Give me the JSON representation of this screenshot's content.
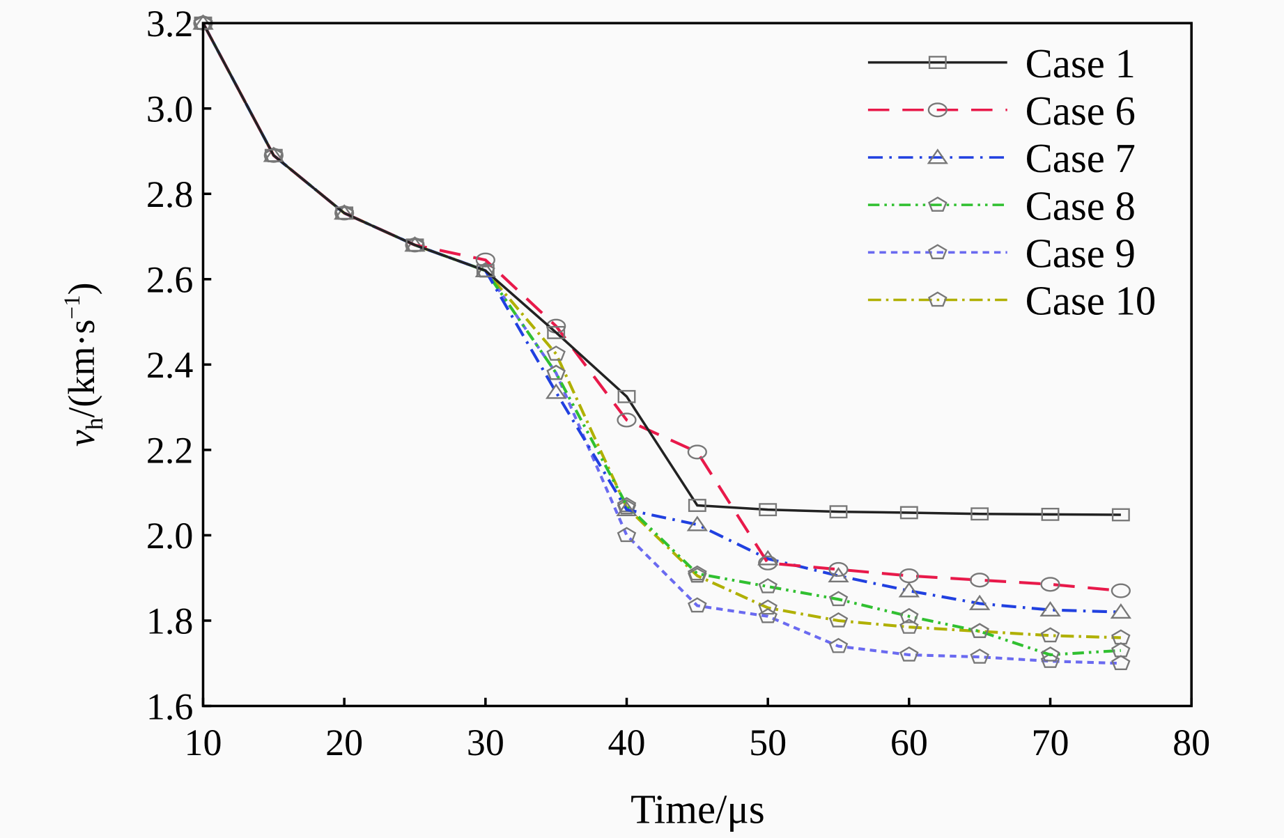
{
  "chart_data": {
    "type": "line",
    "xlabel": "Time/μs",
    "ylabel": {
      "main": "v",
      "sub": "h",
      "unit": "/(km·s",
      "sup": "−1",
      "close": ")"
    },
    "xlim": [
      10,
      80
    ],
    "ylim": [
      1.6,
      3.2
    ],
    "xticks": [
      "10",
      "20",
      "30",
      "40",
      "50",
      "60",
      "70",
      "80"
    ],
    "yticks": [
      "1.6",
      "1.8",
      "2.0",
      "2.2",
      "2.4",
      "2.6",
      "2.8",
      "3.0",
      "3.2"
    ],
    "legend_position": "top-right",
    "x": [
      10,
      15,
      20,
      25,
      30,
      35,
      40,
      45,
      50,
      55,
      60,
      65,
      70,
      75
    ],
    "series": [
      {
        "name": "Case 1",
        "color": "#222222",
        "dash": "",
        "marker": "square",
        "values": [
          3.2,
          2.89,
          2.755,
          2.68,
          2.62,
          2.475,
          2.325,
          2.07,
          2.06,
          2.055,
          2.053,
          2.05,
          2.049,
          2.048
        ]
      },
      {
        "name": "Case 6",
        "color": "#e8194a",
        "dash": "26 16",
        "marker": "circle",
        "values": [
          3.2,
          2.89,
          2.755,
          2.68,
          2.645,
          2.49,
          2.27,
          2.195,
          1.935,
          1.92,
          1.905,
          1.895,
          1.885,
          1.87
        ]
      },
      {
        "name": "Case 7",
        "color": "#2040e0",
        "dash": "18 8 3 8",
        "marker": "triangle",
        "values": [
          3.2,
          2.89,
          2.755,
          2.68,
          2.62,
          2.335,
          2.06,
          2.025,
          1.945,
          1.905,
          1.87,
          1.84,
          1.825,
          1.82
        ]
      },
      {
        "name": "Case 8",
        "color": "#30c030",
        "dash": "14 6 3 6 3 6",
        "marker": "pentagon",
        "values": [
          3.2,
          2.89,
          2.755,
          2.68,
          2.62,
          2.38,
          2.07,
          1.91,
          1.88,
          1.85,
          1.81,
          1.775,
          1.72,
          1.73
        ]
      },
      {
        "name": "Case 9",
        "color": "#6a6af0",
        "dash": "8 6",
        "marker": "pentagon",
        "values": [
          3.2,
          2.89,
          2.755,
          2.68,
          2.62,
          2.38,
          2.0,
          1.835,
          1.81,
          1.74,
          1.72,
          1.715,
          1.705,
          1.7
        ]
      },
      {
        "name": "Case 10",
        "color": "#b0b000",
        "dash": "16 6 3 6",
        "marker": "pentagon",
        "values": [
          3.2,
          2.89,
          2.755,
          2.68,
          2.62,
          2.425,
          2.065,
          1.905,
          1.83,
          1.8,
          1.785,
          1.775,
          1.765,
          1.76
        ]
      }
    ]
  }
}
